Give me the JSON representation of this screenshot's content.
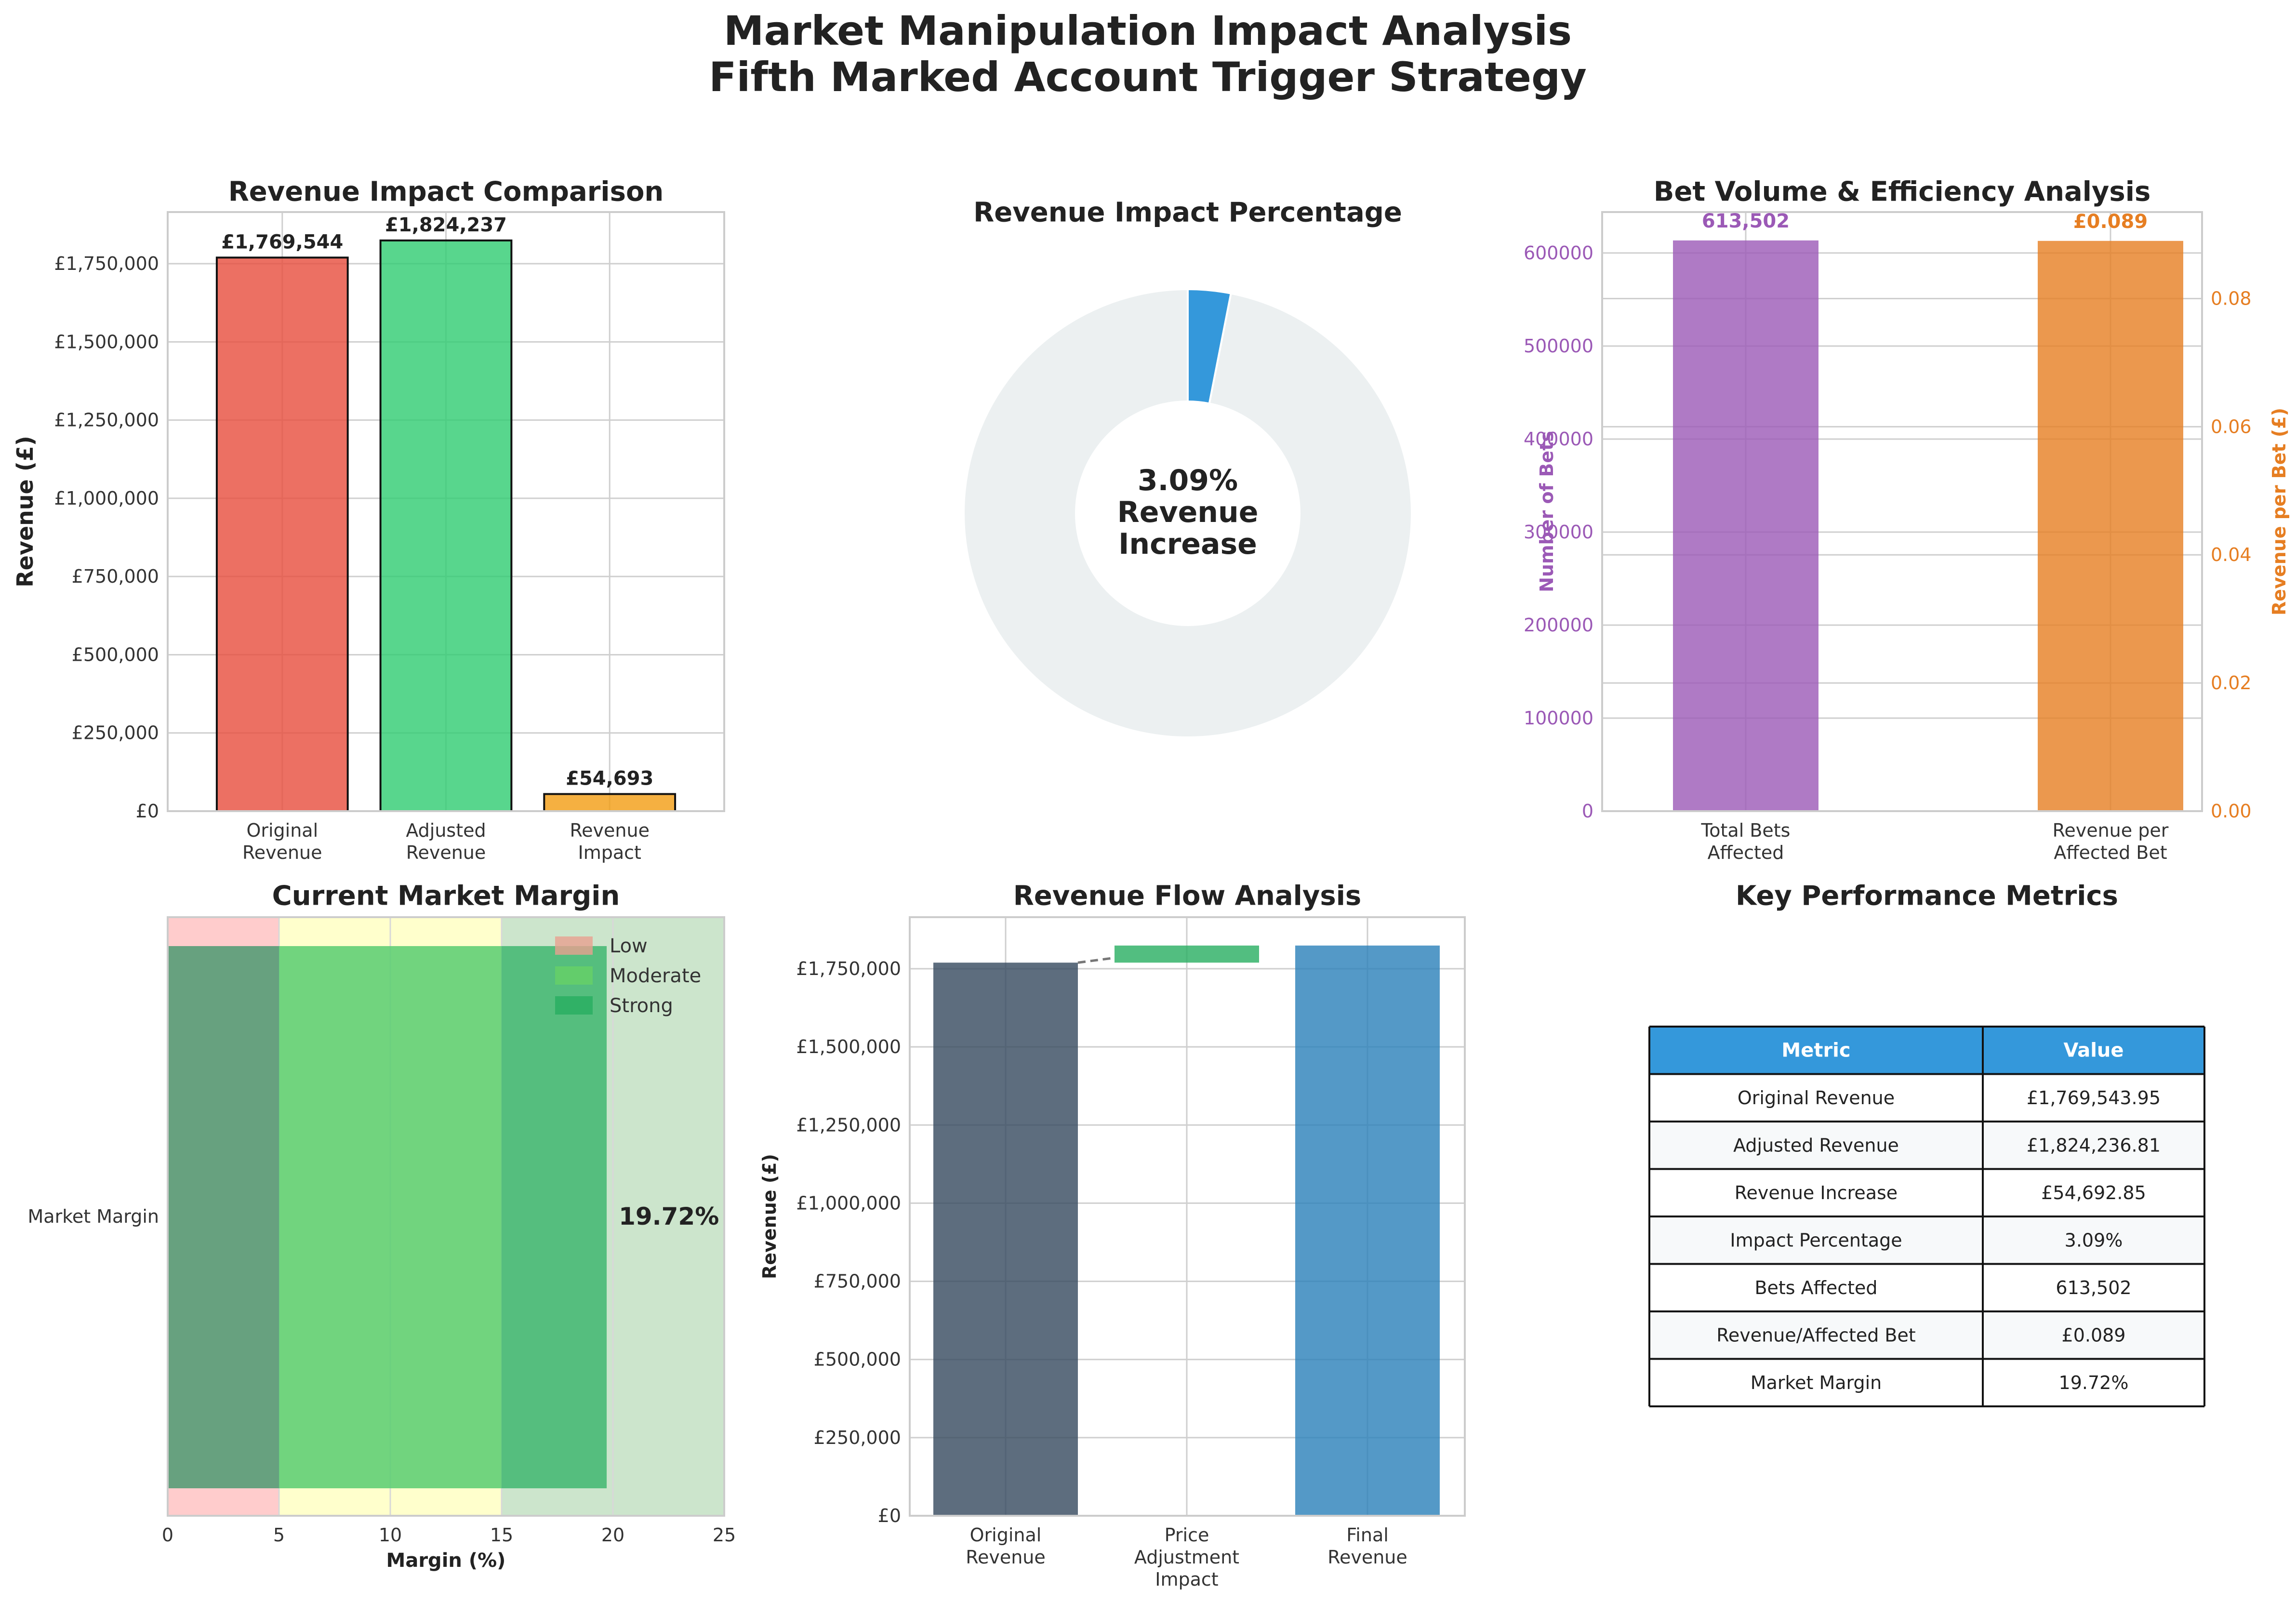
{
  "title": [
    "Market Manipulation Impact Analysis",
    "Fifth Marked Account Trigger Strategy"
  ],
  "colors": {
    "red": "#e74c3c",
    "green": "#2ecc71",
    "orange": "#f39c12",
    "blue": "#3498db",
    "purple": "#9b59b6",
    "dark_orange": "#e67e22",
    "slate": "#34495e",
    "donut_bg": "#ecf0f1",
    "waterfall_green": "#27ae60",
    "waterfall_blue": "#2980b9",
    "table_header": "#3498db"
  },
  "chart_data": [
    {
      "id": "revenue-comparison",
      "type": "bar",
      "title": "Revenue Impact Comparison",
      "ylabel": "Revenue (£)",
      "categories": [
        [
          "Original",
          "Revenue"
        ],
        [
          "Adjusted",
          "Revenue"
        ],
        [
          "Revenue",
          "Impact"
        ]
      ],
      "values": [
        1769543.95,
        1824236.81,
        54692.85
      ],
      "data_labels": [
        "£1,769,544",
        "£1,824,237",
        "£54,693"
      ],
      "yticks": [
        0,
        250000,
        500000,
        750000,
        1000000,
        1250000,
        1500000,
        1750000
      ],
      "ytick_labels": [
        "£0",
        "£250,000",
        "£500,000",
        "£750,000",
        "£1,000,000",
        "£1,250,000",
        "£1,500,000",
        "£1,750,000"
      ],
      "ylim": [
        0,
        1915000
      ],
      "grid": true
    },
    {
      "id": "impact-donut",
      "type": "pie",
      "title": "Revenue Impact Percentage",
      "values": [
        3.09,
        96.91
      ],
      "center_text": [
        "3.09%",
        "Revenue",
        "Increase"
      ]
    },
    {
      "id": "bet-volume",
      "type": "bar",
      "title": "Bet Volume & Efficiency Analysis",
      "categories": [
        [
          "Total Bets",
          "Affected"
        ],
        [
          "Revenue per",
          "Affected Bet"
        ]
      ],
      "series": [
        {
          "axis": "left",
          "value": 613502,
          "data_label": "613,502"
        },
        {
          "axis": "right",
          "value": 0.089,
          "data_label": "£0.089"
        }
      ],
      "ylabel_left": "Number of Bets",
      "ylabel_right": "Revenue per Bet (£)",
      "ylim_left": [
        0,
        644000
      ],
      "ylim_right": [
        0,
        0.0935
      ],
      "yticks_left": [
        0,
        100000,
        200000,
        300000,
        400000,
        500000,
        600000
      ],
      "yticks_right": [
        0.0,
        0.02,
        0.04,
        0.06,
        0.08
      ],
      "ytick_labels_right": [
        "0.00",
        "0.02",
        "0.04",
        "0.06",
        "0.08"
      ],
      "grid": true
    },
    {
      "id": "market-margin",
      "type": "bar",
      "title": "Current Market Margin",
      "xlabel": "Margin (%)",
      "category": "Market Margin",
      "value": 19.72,
      "value_label": "19.72%",
      "xlim": [
        0,
        25
      ],
      "xticks": [
        0,
        5,
        10,
        15,
        20,
        25
      ],
      "zones": [
        {
          "name": "Low",
          "from": 0,
          "to": 5
        },
        {
          "name": "Moderate",
          "from": 5,
          "to": 15
        },
        {
          "name": "Strong",
          "from": 15,
          "to": 25
        }
      ],
      "legend": [
        "Low",
        "Moderate",
        "Strong"
      ],
      "legend_position": "top-right"
    },
    {
      "id": "revenue-flow",
      "type": "bar",
      "title": "Revenue Flow Analysis",
      "ylabel": "Revenue (£)",
      "categories": [
        [
          "Original",
          "Revenue"
        ],
        [
          "Price",
          "Adjustment",
          "Impact"
        ],
        [
          "Final",
          "Revenue"
        ]
      ],
      "bars": [
        {
          "bottom": 0,
          "top": 1769543.95
        },
        {
          "bottom": 1769543.95,
          "top": 1824236.81
        },
        {
          "bottom": 0,
          "top": 1824236.81
        }
      ],
      "yticks": [
        0,
        250000,
        500000,
        750000,
        1000000,
        1250000,
        1500000,
        1750000
      ],
      "ytick_labels": [
        "£0",
        "£250,000",
        "£500,000",
        "£750,000",
        "£1,000,000",
        "£1,250,000",
        "£1,500,000",
        "£1,750,000"
      ],
      "ylim": [
        0,
        1915000
      ],
      "grid": true
    }
  ],
  "table": {
    "title": "Key Performance Metrics",
    "headers": [
      "Metric",
      "Value"
    ],
    "rows": [
      [
        "Original Revenue",
        "£1,769,543.95"
      ],
      [
        "Adjusted Revenue",
        "£1,824,236.81"
      ],
      [
        "Revenue Increase",
        "£54,692.85"
      ],
      [
        "Impact Percentage",
        "3.09%"
      ],
      [
        "Bets Affected",
        "613,502"
      ],
      [
        "Revenue/Affected Bet",
        "£0.089"
      ],
      [
        "Market Margin",
        "19.72%"
      ]
    ]
  }
}
